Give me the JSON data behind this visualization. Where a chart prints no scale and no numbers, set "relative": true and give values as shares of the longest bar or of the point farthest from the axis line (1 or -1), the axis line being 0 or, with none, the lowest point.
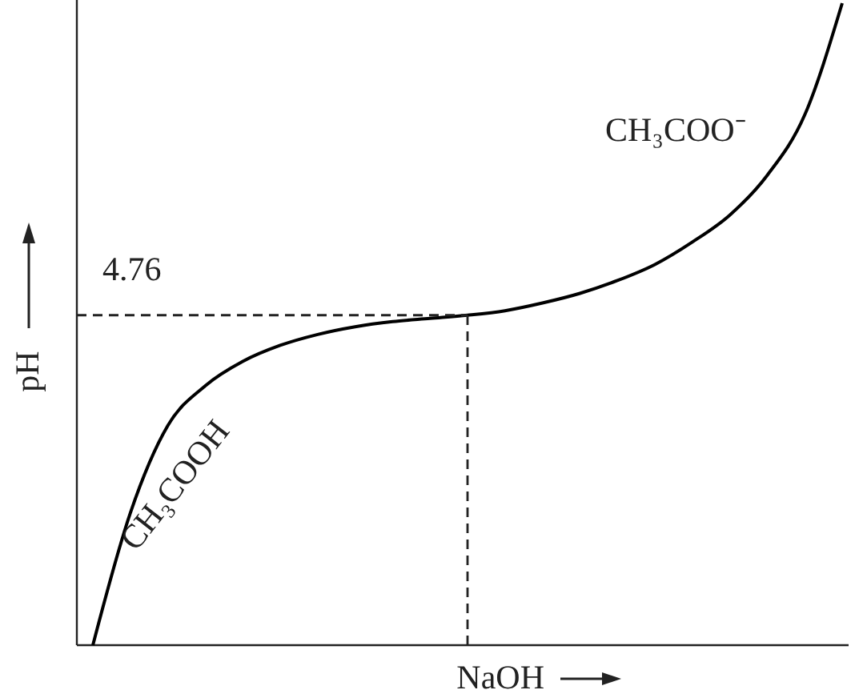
{
  "chart_data": {
    "type": "line",
    "relative": true,
    "xlabel": "NaOH",
    "ylabel": "pH",
    "categories": [
      null,
      null,
      null,
      null,
      null,
      null,
      null,
      null,
      null,
      null,
      null,
      null,
      null,
      null,
      null,
      null,
      null,
      null,
      null,
      null,
      null
    ],
    "series": [
      {
        "color": "#000000",
        "values": [
          0,
          0.206,
          0.342,
          0.404,
          0.442,
          0.467,
          0.484,
          0.496,
          0.504,
          0.509,
          0.514,
          0.521,
          0.533,
          0.548,
          0.568,
          0.593,
          0.628,
          0.67,
          0.732,
          0.826,
          1
        ]
      }
    ],
    "ref_lines": [
      {
        "axis": "y",
        "value": 0.514,
        "line_style": "dashed"
      }
    ],
    "annotations": [
      "CH₃COOH",
      "CH₃COO⁻",
      "4.76"
    ],
    "marker": "none",
    "line_style": "solid",
    "grid": false
  }
}
